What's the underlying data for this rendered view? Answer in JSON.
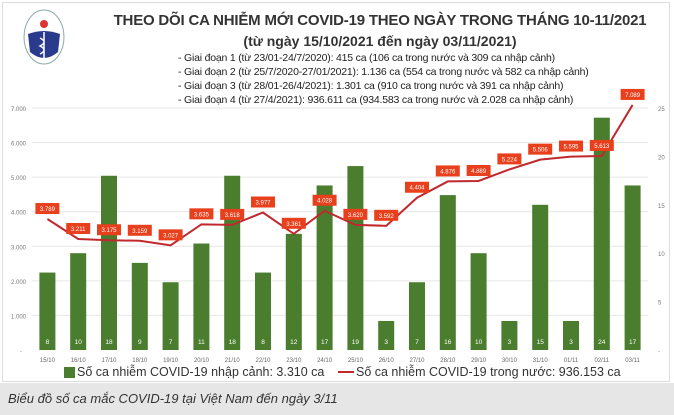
{
  "header": {
    "title": "THEO DÕI CA NHIỄM MỚI COVID-19 THEO NGÀY TRONG THÁNG 10-11/2021",
    "subtitle": "(từ ngày 15/10/2021 đến ngày 03/11/2021)",
    "stages": [
      "- Giai đoạn 1 (từ 23/01-24/7/2020): 415 ca (106 ca trong nước và 309 ca nhập cảnh)",
      "- Giai đoạn 2 (từ 25/7/2020-27/01/2021): 1.136 ca (554 ca trong nước và 582 ca nhập cảnh)",
      "- Giai đoạn 3 (từ 28/01-26/4/2021): 1.301 ca (910 ca trong nước và 391 ca nhập cảnh)",
      "- Giai đoạn 4 (từ 27/4/2021): 936.611 ca (934.583 ca trong nước và 2.028 ca nhập cảnh)"
    ],
    "logo_text": "BỘ Y TẾ"
  },
  "chart_data": {
    "type": "bar+line",
    "categories": [
      "15/10",
      "16/10",
      "17/10",
      "18/10",
      "19/10",
      "20/10",
      "21/10",
      "22/10",
      "23/10",
      "24/10",
      "25/10",
      "26/10",
      "27/10",
      "28/10",
      "29/10",
      "30/10",
      "31/10",
      "01/11",
      "02/11",
      "03/11"
    ],
    "series": [
      {
        "name": "Số ca nhiễm COVID-19 nhập cảnh: 3.310 ca",
        "type": "bar",
        "axis": "right",
        "color": "#4a7d2e",
        "values": [
          8,
          10,
          18,
          9,
          7,
          11,
          18,
          8,
          12,
          17,
          19,
          3,
          7,
          16,
          10,
          3,
          15,
          3,
          24,
          17
        ]
      },
      {
        "name": "Số ca nhiễm COVID-19 trong nước: 936.153 ca",
        "type": "line",
        "axis": "left",
        "color": "#c0282d",
        "values": [
          3789,
          3211,
          3175,
          3159,
          3027,
          3635,
          3618,
          3977,
          3361,
          4028,
          3620,
          3592,
          4404,
          4876,
          4889,
          5224,
          5506,
          5595,
          5613,
          7089
        ],
        "labels": [
          "3.789",
          "3.211",
          "3.175",
          "3.159",
          "3.027",
          "3.635",
          "3.618",
          "3.977",
          "3.361",
          "4.028",
          "3.620",
          "3.592",
          "4.404",
          "4.876",
          "4.889",
          "5.224",
          "5.506",
          "5.595",
          "5.613",
          "7.089"
        ]
      }
    ],
    "left_axis": {
      "ylim": [
        0,
        7000
      ],
      "ticks": [
        "-",
        "1.000",
        "2.000",
        "3.000",
        "4.000",
        "5.000",
        "6.000",
        "7.000"
      ]
    },
    "right_axis": {
      "ylim": [
        0,
        25
      ],
      "ticks": [
        "-",
        "5",
        "10",
        "15",
        "20",
        "25"
      ]
    },
    "grid": true,
    "legend_position": "bottom"
  },
  "caption": "Biểu đồ số ca mắc COVID-19 tại Việt Nam đến ngày 3/11"
}
